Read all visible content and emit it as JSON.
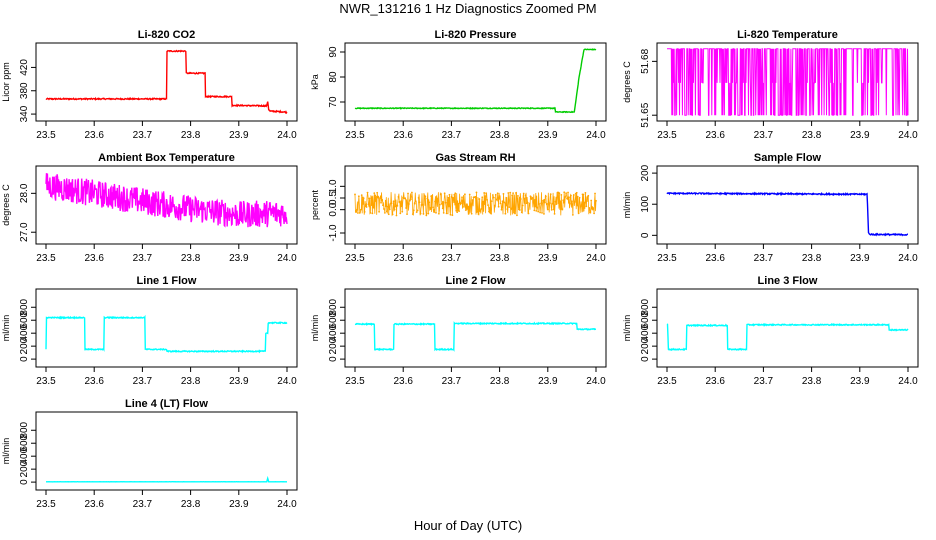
{
  "figure": {
    "title": "NWR_131216  1 Hz Diagnostics Zoomed PM",
    "xlabel": "Hour of Day (UTC)"
  },
  "chart_data": [
    {
      "type": "line",
      "title": "Li-820 CO2",
      "ylabel": "Licor ppm",
      "color": "#ff0000",
      "xlim": [
        23.5,
        24.0
      ],
      "ylim": [
        335,
        455
      ],
      "xticks": [
        23.5,
        23.6,
        23.7,
        23.8,
        23.9,
        24.0
      ],
      "yticks": [
        340,
        380,
        420
      ],
      "xtick_labels": [
        "23.5",
        "23.6",
        "23.7",
        "23.8",
        "23.9",
        "24.0"
      ],
      "ytick_labels": [
        "340",
        "380",
        "420"
      ],
      "x": [
        23.5,
        23.75,
        23.751,
        23.79,
        23.791,
        23.83,
        23.831,
        23.885,
        23.886,
        23.958,
        23.96,
        23.962,
        23.965,
        23.99,
        24.0
      ],
      "y": [
        366,
        366,
        448,
        448,
        410,
        410,
        370,
        370,
        355,
        354,
        362,
        348,
        345,
        344,
        343
      ],
      "noise": 1
    },
    {
      "type": "line",
      "title": "Li-820 Pressure",
      "ylabel": "kPa",
      "color": "#00cc00",
      "xlim": [
        23.5,
        24.0
      ],
      "ylim": [
        64,
        92
      ],
      "xticks": [
        23.5,
        23.6,
        23.7,
        23.8,
        23.9,
        24.0
      ],
      "yticks": [
        70,
        80,
        90
      ],
      "xtick_labels": [
        "23.5",
        "23.6",
        "23.7",
        "23.8",
        "23.9",
        "24.0"
      ],
      "ytick_labels": [
        "70",
        "80",
        "90"
      ],
      "x": [
        23.5,
        23.915,
        23.916,
        23.955,
        23.965,
        23.975,
        24.0
      ],
      "y": [
        67.5,
        67.5,
        66,
        66,
        80,
        91,
        91
      ],
      "noise": 0.15
    },
    {
      "type": "line",
      "title": "Li-820 Temperature",
      "ylabel": "degrees C",
      "color": "#ff00ff",
      "xlim": [
        23.5,
        24.0
      ],
      "ylim": [
        51.649,
        51.688
      ],
      "xticks": [
        23.5,
        23.6,
        23.7,
        23.8,
        23.9,
        24.0
      ],
      "yticks": [
        51.65,
        51.68
      ],
      "xtick_labels": [
        "23.5",
        "23.6",
        "23.7",
        "23.8",
        "23.9",
        "24.0"
      ],
      "ytick_labels": [
        "51.65",
        "51.68"
      ],
      "binary": [
        51.65,
        51.687,
        51.668
      ]
    },
    {
      "type": "line",
      "title": "Ambient Box Temperature",
      "ylabel": "degrees C",
      "color": "#ff00ff",
      "xlim": [
        23.5,
        24.0
      ],
      "ylim": [
        26.8,
        28.6
      ],
      "xticks": [
        23.5,
        23.6,
        23.7,
        23.8,
        23.9,
        24.0
      ],
      "yticks": [
        27.0,
        28.0
      ],
      "xtick_labels": [
        "23.5",
        "23.6",
        "23.7",
        "23.8",
        "23.9",
        "24.0"
      ],
      "ytick_labels": [
        "27.0",
        "28.0"
      ],
      "x": [
        23.5,
        23.6,
        23.7,
        23.8,
        23.9,
        24.0
      ],
      "y": [
        28.2,
        28.0,
        27.8,
        27.6,
        27.45,
        27.5
      ],
      "noise": 0.35
    },
    {
      "type": "line",
      "title": "Gas Stream RH",
      "ylabel": "percent",
      "color": "#ffa500",
      "xlim": [
        23.5,
        24.0
      ],
      "ylim": [
        -1.3,
        1.7
      ],
      "xticks": [
        23.5,
        23.6,
        23.7,
        23.8,
        23.9,
        24.0
      ],
      "yticks": [
        -1.0,
        0.0,
        0.5,
        1.0
      ],
      "xtick_labels": [
        "23.5",
        "23.6",
        "23.7",
        "23.8",
        "23.9",
        "24.0"
      ],
      "ytick_labels": [
        "-1.0",
        "0.0",
        "0.5",
        "1.0"
      ],
      "x": [
        23.5,
        24.0
      ],
      "y": [
        0.25,
        0.25
      ],
      "noise": 0.5,
      "points": true
    },
    {
      "type": "line",
      "title": "Sample Flow",
      "ylabel": "ml/min",
      "color": "#0000ff",
      "xlim": [
        23.5,
        24.0
      ],
      "ylim": [
        -15,
        210
      ],
      "xticks": [
        23.5,
        23.6,
        23.7,
        23.8,
        23.9,
        24.0
      ],
      "yticks": [
        0,
        100,
        200
      ],
      "xtick_labels": [
        "23.5",
        "23.6",
        "23.7",
        "23.8",
        "23.9",
        "24.0"
      ],
      "ytick_labels": [
        "0",
        "100",
        "200"
      ],
      "x": [
        23.5,
        23.915,
        23.916,
        23.918,
        23.92,
        24.0
      ],
      "y": [
        135,
        132,
        100,
        10,
        3,
        2
      ],
      "noise": 2
    },
    {
      "type": "line",
      "title": "Line 1 Flow",
      "ylabel": "ml/min",
      "color": "#00ffff",
      "xlim": [
        23.5,
        24.0
      ],
      "ylim": [
        -60,
        1020
      ],
      "xticks": [
        23.5,
        23.6,
        23.7,
        23.8,
        23.9,
        24.0
      ],
      "yticks": [
        0,
        200,
        400,
        600,
        800
      ],
      "xtick_labels": [
        "23.5",
        "23.6",
        "23.7",
        "23.8",
        "23.9",
        "24.0"
      ],
      "ytick_labels": [
        "0",
        "200",
        "400",
        "600",
        "800"
      ],
      "x": [
        23.5,
        23.501,
        23.58,
        23.581,
        23.62,
        23.621,
        23.705,
        23.706,
        23.75,
        23.751,
        23.955,
        23.956,
        23.96,
        23.961,
        24.0
      ],
      "y": [
        150,
        640,
        640,
        150,
        150,
        640,
        640,
        150,
        150,
        120,
        120,
        400,
        400,
        560,
        560
      ],
      "noise": 8
    },
    {
      "type": "line",
      "title": "Line 2 Flow",
      "ylabel": "ml/min",
      "color": "#00ffff",
      "xlim": [
        23.5,
        24.0
      ],
      "ylim": [
        -60,
        1020
      ],
      "xticks": [
        23.5,
        23.6,
        23.7,
        23.8,
        23.9,
        24.0
      ],
      "yticks": [
        0,
        200,
        400,
        600,
        800
      ],
      "xtick_labels": [
        "23.5",
        "23.6",
        "23.7",
        "23.8",
        "23.9",
        "24.0"
      ],
      "ytick_labels": [
        "0",
        "200",
        "400",
        "600",
        "800"
      ],
      "x": [
        23.5,
        23.54,
        23.541,
        23.58,
        23.581,
        23.665,
        23.666,
        23.705,
        23.706,
        23.96,
        23.961,
        24.0
      ],
      "y": [
        540,
        540,
        150,
        150,
        540,
        540,
        150,
        150,
        550,
        550,
        460,
        460
      ],
      "noise": 8
    },
    {
      "type": "line",
      "title": "Line 3 Flow",
      "ylabel": "ml/min",
      "color": "#00ffff",
      "xlim": [
        23.5,
        24.0
      ],
      "ylim": [
        -60,
        1020
      ],
      "xticks": [
        23.5,
        23.6,
        23.7,
        23.8,
        23.9,
        24.0
      ],
      "yticks": [
        0,
        200,
        400,
        600,
        800
      ],
      "xtick_labels": [
        "23.5",
        "23.6",
        "23.7",
        "23.8",
        "23.9",
        "24.0"
      ],
      "ytick_labels": [
        "0",
        "200",
        "400",
        "600",
        "800"
      ],
      "x": [
        23.5,
        23.501,
        23.503,
        23.54,
        23.541,
        23.625,
        23.626,
        23.665,
        23.666,
        23.96,
        23.961,
        24.0
      ],
      "y": [
        540,
        540,
        150,
        150,
        520,
        520,
        150,
        150,
        530,
        530,
        450,
        450
      ],
      "noise": 8
    },
    {
      "type": "line",
      "title": "Line 4 (LT) Flow",
      "ylabel": "ml/min",
      "color": "#00ffff",
      "xlim": [
        23.5,
        24.0
      ],
      "ylim": [
        -60,
        1020
      ],
      "xticks": [
        23.5,
        23.6,
        23.7,
        23.8,
        23.9,
        24.0
      ],
      "yticks": [
        0,
        200,
        400,
        600,
        800
      ],
      "xtick_labels": [
        "23.5",
        "23.6",
        "23.7",
        "23.8",
        "23.9",
        "24.0"
      ],
      "ytick_labels": [
        "0",
        "200",
        "400",
        "600",
        "800"
      ],
      "x": [
        23.5,
        23.958,
        23.96,
        23.962,
        24.0
      ],
      "y": [
        5,
        5,
        60,
        5,
        5
      ],
      "noise": 1
    }
  ]
}
